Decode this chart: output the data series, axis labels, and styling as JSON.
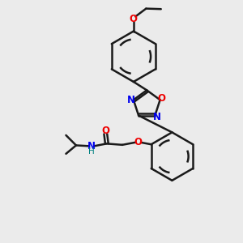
{
  "bg_color": "#ebebeb",
  "bond_color": "#1a1a1a",
  "N_color": "#0000ee",
  "O_color": "#ee0000",
  "H_color": "#008080",
  "line_width": 1.8,
  "font_size": 8.5,
  "xlim": [
    0,
    10
  ],
  "ylim": [
    0,
    10
  ]
}
